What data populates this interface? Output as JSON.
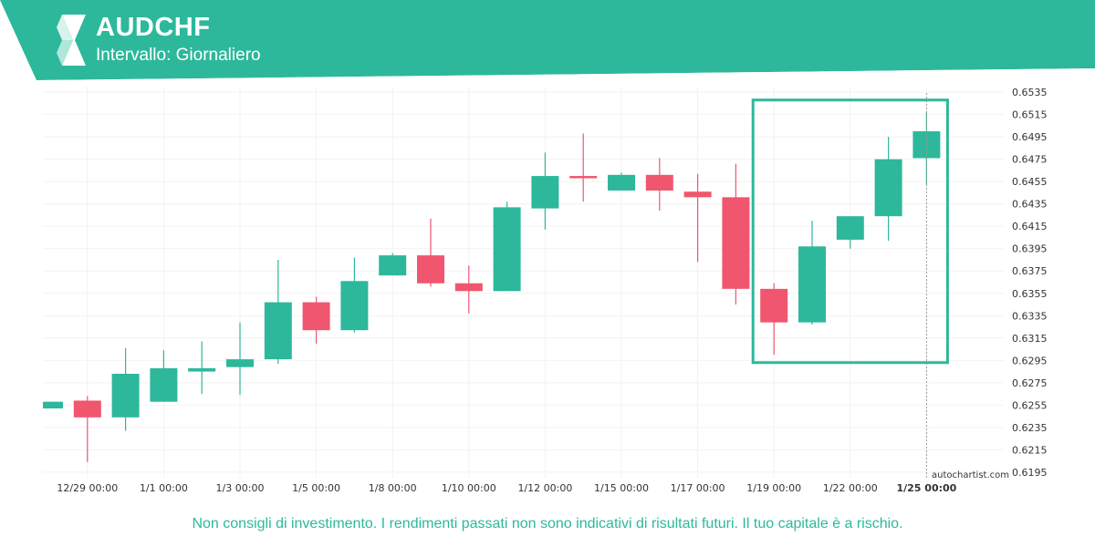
{
  "header": {
    "title": "AUDCHF",
    "subtitle": "Intervallo: Giornaliero",
    "brand_color": "#2db89b",
    "logo_icon": "autochartist-logo-icon"
  },
  "chart_data": {
    "type": "candlestick",
    "symbol": "AUDCHF",
    "up_color": "#2db89b",
    "down_color": "#f0566e",
    "ylim": [
      0.619,
      0.654
    ],
    "y_ticks": [
      "0.6535",
      "0.6515",
      "0.6495",
      "0.6475",
      "0.6455",
      "0.6435",
      "0.6415",
      "0.6395",
      "0.6375",
      "0.6355",
      "0.6335",
      "0.6315",
      "0.6295",
      "0.6275",
      "0.6255",
      "0.6235",
      "0.6215",
      "0.6195"
    ],
    "x_ticks": [
      {
        "label": "12/29 00:00",
        "index": 1,
        "bold": false
      },
      {
        "label": "1/1 00:00",
        "index": 3,
        "bold": false
      },
      {
        "label": "1/3 00:00",
        "index": 5,
        "bold": false
      },
      {
        "label": "1/5 00:00",
        "index": 7,
        "bold": false
      },
      {
        "label": "1/8 00:00",
        "index": 9,
        "bold": false
      },
      {
        "label": "1/10 00:00",
        "index": 11,
        "bold": false
      },
      {
        "label": "1/12 00:00",
        "index": 13,
        "bold": false
      },
      {
        "label": "1/15 00:00",
        "index": 15,
        "bold": false
      },
      {
        "label": "1/17 00:00",
        "index": 17,
        "bold": false
      },
      {
        "label": "1/19 00:00",
        "index": 19,
        "bold": false
      },
      {
        "label": "1/22 00:00",
        "index": 21,
        "bold": false
      },
      {
        "label": "1/25 00:00",
        "index": 23,
        "bold": true
      }
    ],
    "candles": [
      {
        "o": 0.6252,
        "h": 0.6258,
        "l": 0.6252,
        "c": 0.6258
      },
      {
        "o": 0.6259,
        "h": 0.6263,
        "l": 0.6204,
        "c": 0.6244
      },
      {
        "o": 0.6244,
        "h": 0.6306,
        "l": 0.6232,
        "c": 0.6283
      },
      {
        "o": 0.6258,
        "h": 0.6304,
        "l": 0.6258,
        "c": 0.6288
      },
      {
        "o": 0.6285,
        "h": 0.6312,
        "l": 0.6265,
        "c": 0.6288
      },
      {
        "o": 0.6289,
        "h": 0.6329,
        "l": 0.6264,
        "c": 0.6296
      },
      {
        "o": 0.6296,
        "h": 0.6385,
        "l": 0.6292,
        "c": 0.6347
      },
      {
        "o": 0.6347,
        "h": 0.6352,
        "l": 0.631,
        "c": 0.6322
      },
      {
        "o": 0.6322,
        "h": 0.6387,
        "l": 0.632,
        "c": 0.6366
      },
      {
        "o": 0.6371,
        "h": 0.6391,
        "l": 0.6371,
        "c": 0.6389
      },
      {
        "o": 0.6389,
        "h": 0.6422,
        "l": 0.6361,
        "c": 0.6364
      },
      {
        "o": 0.6364,
        "h": 0.638,
        "l": 0.6337,
        "c": 0.6357
      },
      {
        "o": 0.6357,
        "h": 0.6437,
        "l": 0.6357,
        "c": 0.6432
      },
      {
        "o": 0.6431,
        "h": 0.6481,
        "l": 0.6412,
        "c": 0.646
      },
      {
        "o": 0.646,
        "h": 0.6498,
        "l": 0.6437,
        "c": 0.6458
      },
      {
        "o": 0.6447,
        "h": 0.6463,
        "l": 0.6447,
        "c": 0.6461
      },
      {
        "o": 0.6461,
        "h": 0.6476,
        "l": 0.6429,
        "c": 0.6447
      },
      {
        "o": 0.6446,
        "h": 0.6462,
        "l": 0.6383,
        "c": 0.6441
      },
      {
        "o": 0.6441,
        "h": 0.6471,
        "l": 0.6345,
        "c": 0.6359
      },
      {
        "o": 0.6359,
        "h": 0.6364,
        "l": 0.63,
        "c": 0.6329
      },
      {
        "o": 0.6329,
        "h": 0.642,
        "l": 0.6327,
        "c": 0.6397
      },
      {
        "o": 0.6403,
        "h": 0.6424,
        "l": 0.6395,
        "c": 0.6424
      },
      {
        "o": 0.6424,
        "h": 0.6495,
        "l": 0.6402,
        "c": 0.6475
      },
      {
        "o": 0.6476,
        "h": 0.6517,
        "l": 0.6452,
        "c": 0.65
      }
    ],
    "highlight_box": {
      "from_index": 19,
      "to_index": 23,
      "top": 0.6528,
      "bottom": 0.6293,
      "color": "#2db89b"
    },
    "current_marker_index": 23,
    "grid": true
  },
  "watermark": "autochartist.com",
  "footer": {
    "disclaimer": "Non consigli di investimento. I rendimenti passati non sono indicativi di risultati futuri. Il tuo capitale è a rischio."
  }
}
